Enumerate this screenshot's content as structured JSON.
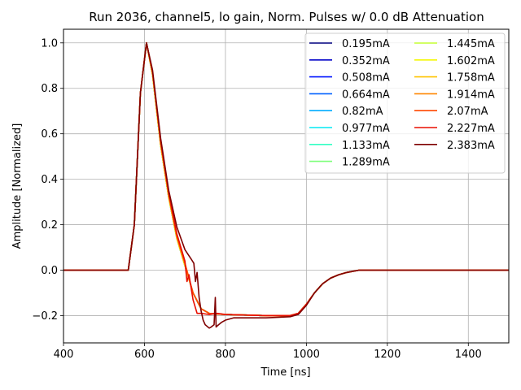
{
  "chart_data": {
    "type": "line",
    "title": "Run 2036, channel5, lo gain, Norm. Pulses w/ 0.0 dB Attenuation",
    "xlabel": "Time [ns]",
    "ylabel": "Amplitude [Normalized]",
    "xlim": [
      400,
      1500
    ],
    "ylim": [
      -0.32,
      1.06
    ],
    "xticks": [
      400,
      600,
      800,
      1000,
      1200,
      1400
    ],
    "yticks": [
      -0.2,
      0.0,
      0.2,
      0.4,
      0.6,
      0.8,
      1.0
    ],
    "xtick_labels": [
      "400",
      "600",
      "800",
      "1000",
      "1200",
      "1400"
    ],
    "ytick_labels": [
      "−0.2",
      "0.0",
      "0.2",
      "0.4",
      "0.6",
      "0.8",
      "1.0"
    ],
    "grid": true,
    "legend_position": "top-right",
    "legend_columns": 2,
    "series": [
      {
        "name": "0.195mA",
        "color": "#00007f",
        "x": [
          400,
          560,
          575,
          590,
          605,
          620,
          640,
          660,
          680,
          700,
          720,
          740,
          760,
          800,
          900,
          960,
          980,
          1000,
          1020,
          1040,
          1060,
          1080,
          1100,
          1130,
          1160,
          1200,
          1300,
          1500
        ],
        "y": [
          0.0,
          0.0,
          0.2,
          0.78,
          1.0,
          0.86,
          0.55,
          0.32,
          0.14,
          0.02,
          -0.1,
          -0.17,
          -0.19,
          -0.195,
          -0.2,
          -0.2,
          -0.19,
          -0.15,
          -0.1,
          -0.06,
          -0.035,
          -0.02,
          -0.01,
          0.0,
          0.0,
          0.0,
          0.0,
          0.0
        ]
      },
      {
        "name": "0.352mA",
        "color": "#0000c8",
        "x": [
          400,
          560,
          575,
          590,
          605,
          620,
          640,
          660,
          680,
          700,
          720,
          740,
          760,
          800,
          900,
          960,
          980,
          1000,
          1020,
          1040,
          1060,
          1080,
          1100,
          1130,
          1160,
          1200,
          1300,
          1500
        ],
        "y": [
          0.0,
          0.0,
          0.2,
          0.78,
          1.0,
          0.86,
          0.55,
          0.32,
          0.14,
          0.02,
          -0.1,
          -0.17,
          -0.19,
          -0.195,
          -0.2,
          -0.2,
          -0.19,
          -0.15,
          -0.1,
          -0.06,
          -0.035,
          -0.02,
          -0.01,
          0.0,
          0.0,
          0.0,
          0.0,
          0.0
        ]
      },
      {
        "name": "0.508mA",
        "color": "#0014ff",
        "x": [
          400,
          560,
          575,
          590,
          605,
          620,
          640,
          660,
          680,
          700,
          720,
          740,
          760,
          800,
          900,
          960,
          980,
          1000,
          1020,
          1040,
          1060,
          1080,
          1100,
          1130,
          1160,
          1200,
          1300,
          1500
        ],
        "y": [
          0.0,
          0.0,
          0.2,
          0.78,
          1.0,
          0.86,
          0.55,
          0.32,
          0.14,
          0.02,
          -0.1,
          -0.17,
          -0.19,
          -0.195,
          -0.2,
          -0.2,
          -0.19,
          -0.15,
          -0.1,
          -0.06,
          -0.035,
          -0.02,
          -0.01,
          0.0,
          0.0,
          0.0,
          0.0,
          0.0
        ]
      },
      {
        "name": "0.664mA",
        "color": "#0060ff",
        "x": [
          400,
          560,
          575,
          590,
          605,
          620,
          640,
          660,
          680,
          700,
          720,
          740,
          760,
          800,
          900,
          960,
          980,
          1000,
          1020,
          1040,
          1060,
          1080,
          1100,
          1130,
          1160,
          1200,
          1300,
          1500
        ],
        "y": [
          0.0,
          0.0,
          0.2,
          0.78,
          1.0,
          0.86,
          0.55,
          0.32,
          0.14,
          0.02,
          -0.1,
          -0.17,
          -0.19,
          -0.195,
          -0.2,
          -0.2,
          -0.19,
          -0.15,
          -0.1,
          -0.06,
          -0.035,
          -0.02,
          -0.01,
          0.0,
          0.0,
          0.0,
          0.0,
          0.0
        ]
      },
      {
        "name": "0.82mA",
        "color": "#00acff",
        "x": [
          400,
          560,
          575,
          590,
          605,
          620,
          640,
          660,
          680,
          700,
          720,
          740,
          760,
          800,
          900,
          960,
          980,
          1000,
          1020,
          1040,
          1060,
          1080,
          1100,
          1130,
          1160,
          1200,
          1300,
          1500
        ],
        "y": [
          0.0,
          0.0,
          0.2,
          0.78,
          1.0,
          0.86,
          0.55,
          0.32,
          0.14,
          0.02,
          -0.1,
          -0.17,
          -0.19,
          -0.195,
          -0.2,
          -0.2,
          -0.19,
          -0.15,
          -0.1,
          -0.06,
          -0.035,
          -0.02,
          -0.01,
          0.0,
          0.0,
          0.0,
          0.0,
          0.0
        ]
      },
      {
        "name": "0.977mA",
        "color": "#02e8f4",
        "x": [
          400,
          560,
          575,
          590,
          605,
          620,
          640,
          660,
          680,
          700,
          720,
          740,
          760,
          800,
          900,
          960,
          980,
          1000,
          1020,
          1040,
          1060,
          1080,
          1100,
          1130,
          1160,
          1200,
          1300,
          1500
        ],
        "y": [
          0.0,
          0.0,
          0.2,
          0.78,
          1.0,
          0.86,
          0.55,
          0.32,
          0.14,
          0.02,
          -0.1,
          -0.17,
          -0.19,
          -0.195,
          -0.2,
          -0.2,
          -0.19,
          -0.15,
          -0.1,
          -0.06,
          -0.035,
          -0.02,
          -0.01,
          0.0,
          0.0,
          0.0,
          0.0,
          0.0
        ]
      },
      {
        "name": "1.133mA",
        "color": "#33ffc4",
        "x": [
          400,
          560,
          575,
          590,
          605,
          620,
          640,
          660,
          680,
          700,
          720,
          740,
          760,
          800,
          900,
          960,
          980,
          1000,
          1020,
          1040,
          1060,
          1080,
          1100,
          1130,
          1160,
          1200,
          1300,
          1500
        ],
        "y": [
          0.0,
          0.0,
          0.2,
          0.78,
          1.0,
          0.86,
          0.55,
          0.32,
          0.14,
          0.02,
          -0.1,
          -0.17,
          -0.19,
          -0.195,
          -0.2,
          -0.2,
          -0.19,
          -0.15,
          -0.1,
          -0.06,
          -0.035,
          -0.02,
          -0.01,
          0.0,
          0.0,
          0.0,
          0.0,
          0.0
        ]
      },
      {
        "name": "1.289mA",
        "color": "#7dff7a",
        "x": [
          400,
          560,
          575,
          590,
          605,
          620,
          640,
          660,
          680,
          700,
          720,
          740,
          760,
          800,
          900,
          960,
          980,
          1000,
          1020,
          1040,
          1060,
          1080,
          1100,
          1130,
          1160,
          1200,
          1300,
          1500
        ],
        "y": [
          0.0,
          0.0,
          0.2,
          0.78,
          1.0,
          0.86,
          0.55,
          0.32,
          0.14,
          0.02,
          -0.1,
          -0.17,
          -0.19,
          -0.195,
          -0.2,
          -0.2,
          -0.19,
          -0.15,
          -0.1,
          -0.06,
          -0.035,
          -0.02,
          -0.01,
          0.0,
          0.0,
          0.0,
          0.0,
          0.0
        ]
      },
      {
        "name": "1.445mA",
        "color": "#c4ff33",
        "x": [
          400,
          560,
          575,
          590,
          605,
          620,
          640,
          660,
          680,
          700,
          720,
          740,
          760,
          800,
          900,
          960,
          980,
          1000,
          1020,
          1040,
          1060,
          1080,
          1100,
          1130,
          1160,
          1200,
          1300,
          1500
        ],
        "y": [
          0.0,
          0.0,
          0.2,
          0.78,
          1.0,
          0.86,
          0.55,
          0.32,
          0.14,
          0.02,
          -0.1,
          -0.17,
          -0.19,
          -0.195,
          -0.2,
          -0.2,
          -0.19,
          -0.15,
          -0.1,
          -0.06,
          -0.035,
          -0.02,
          -0.01,
          0.0,
          0.0,
          0.0,
          0.0,
          0.0
        ]
      },
      {
        "name": "1.602mA",
        "color": "#f4f802",
        "x": [
          400,
          560,
          575,
          590,
          605,
          620,
          640,
          660,
          680,
          700,
          720,
          740,
          760,
          800,
          900,
          960,
          980,
          1000,
          1020,
          1040,
          1060,
          1080,
          1100,
          1130,
          1160,
          1200,
          1300,
          1500
        ],
        "y": [
          0.0,
          0.0,
          0.2,
          0.78,
          1.0,
          0.86,
          0.55,
          0.32,
          0.14,
          0.02,
          -0.1,
          -0.17,
          -0.19,
          -0.195,
          -0.2,
          -0.2,
          -0.19,
          -0.15,
          -0.1,
          -0.06,
          -0.035,
          -0.02,
          -0.01,
          0.0,
          0.0,
          0.0,
          0.0,
          0.0
        ]
      },
      {
        "name": "1.758mA",
        "color": "#ffc400",
        "x": [
          400,
          560,
          575,
          590,
          605,
          620,
          640,
          660,
          680,
          700,
          720,
          740,
          760,
          800,
          900,
          960,
          980,
          1000,
          1020,
          1040,
          1060,
          1080,
          1100,
          1130,
          1160,
          1200,
          1300,
          1500
        ],
        "y": [
          0.0,
          0.0,
          0.2,
          0.78,
          1.0,
          0.86,
          0.55,
          0.32,
          0.14,
          0.02,
          -0.1,
          -0.17,
          -0.19,
          -0.195,
          -0.2,
          -0.2,
          -0.19,
          -0.15,
          -0.1,
          -0.06,
          -0.035,
          -0.02,
          -0.01,
          0.0,
          0.0,
          0.0,
          0.0,
          0.0
        ]
      },
      {
        "name": "1.914mA",
        "color": "#ff8600",
        "x": [
          400,
          560,
          575,
          590,
          605,
          620,
          640,
          660,
          680,
          700,
          720,
          740,
          760,
          800,
          900,
          960,
          980,
          1000,
          1020,
          1040,
          1060,
          1080,
          1100,
          1130,
          1160,
          1200,
          1300,
          1500
        ],
        "y": [
          0.0,
          0.0,
          0.2,
          0.78,
          1.0,
          0.87,
          0.56,
          0.33,
          0.15,
          0.03,
          -0.1,
          -0.17,
          -0.19,
          -0.195,
          -0.2,
          -0.2,
          -0.19,
          -0.15,
          -0.1,
          -0.06,
          -0.035,
          -0.02,
          -0.01,
          0.0,
          0.0,
          0.0,
          0.0,
          0.0
        ]
      },
      {
        "name": "2.07mA",
        "color": "#ff4800",
        "x": [
          400,
          560,
          575,
          590,
          605,
          620,
          640,
          660,
          680,
          700,
          720,
          740,
          760,
          800,
          900,
          960,
          980,
          1000,
          1020,
          1040,
          1060,
          1080,
          1100,
          1130,
          1160,
          1200,
          1300,
          1500
        ],
        "y": [
          0.0,
          0.0,
          0.2,
          0.78,
          1.0,
          0.87,
          0.56,
          0.33,
          0.15,
          0.03,
          -0.1,
          -0.17,
          -0.19,
          -0.195,
          -0.2,
          -0.2,
          -0.19,
          -0.15,
          -0.1,
          -0.06,
          -0.035,
          -0.02,
          -0.01,
          0.0,
          0.0,
          0.0,
          0.0,
          0.0
        ]
      },
      {
        "name": "2.227mA",
        "color": "#e80e00",
        "x": [
          400,
          560,
          575,
          590,
          605,
          620,
          640,
          660,
          680,
          700,
          705,
          710,
          720,
          725,
          730,
          740,
          760,
          780,
          800,
          900,
          960,
          980,
          1000,
          1020,
          1040,
          1060,
          1080,
          1100,
          1130,
          1160,
          1200,
          1300,
          1500
        ],
        "y": [
          0.0,
          0.0,
          0.2,
          0.78,
          1.0,
          0.87,
          0.57,
          0.34,
          0.16,
          0.04,
          -0.05,
          -0.02,
          -0.13,
          -0.16,
          -0.19,
          -0.19,
          -0.195,
          -0.19,
          -0.195,
          -0.2,
          -0.2,
          -0.19,
          -0.15,
          -0.1,
          -0.06,
          -0.035,
          -0.02,
          -0.01,
          0.0,
          0.0,
          0.0,
          0.0,
          0.0
        ]
      },
      {
        "name": "2.383mA",
        "color": "#7f0000",
        "x": [
          400,
          560,
          575,
          590,
          605,
          620,
          640,
          660,
          680,
          700,
          715,
          722,
          726,
          730,
          735,
          740,
          745,
          750,
          760,
          765,
          772,
          775,
          777,
          780,
          790,
          800,
          820,
          850,
          900,
          960,
          980,
          1000,
          1020,
          1040,
          1060,
          1080,
          1100,
          1130,
          1160,
          1200,
          1300,
          1500
        ],
        "y": [
          0.0,
          0.0,
          0.2,
          0.78,
          1.0,
          0.88,
          0.58,
          0.35,
          0.19,
          0.09,
          0.05,
          0.03,
          -0.05,
          -0.01,
          -0.12,
          -0.18,
          -0.22,
          -0.24,
          -0.255,
          -0.25,
          -0.24,
          -0.12,
          -0.25,
          -0.245,
          -0.23,
          -0.22,
          -0.21,
          -0.21,
          -0.21,
          -0.205,
          -0.195,
          -0.155,
          -0.1,
          -0.06,
          -0.035,
          -0.02,
          -0.01,
          0.0,
          0.0,
          0.0,
          0.0,
          0.0
        ]
      }
    ]
  }
}
